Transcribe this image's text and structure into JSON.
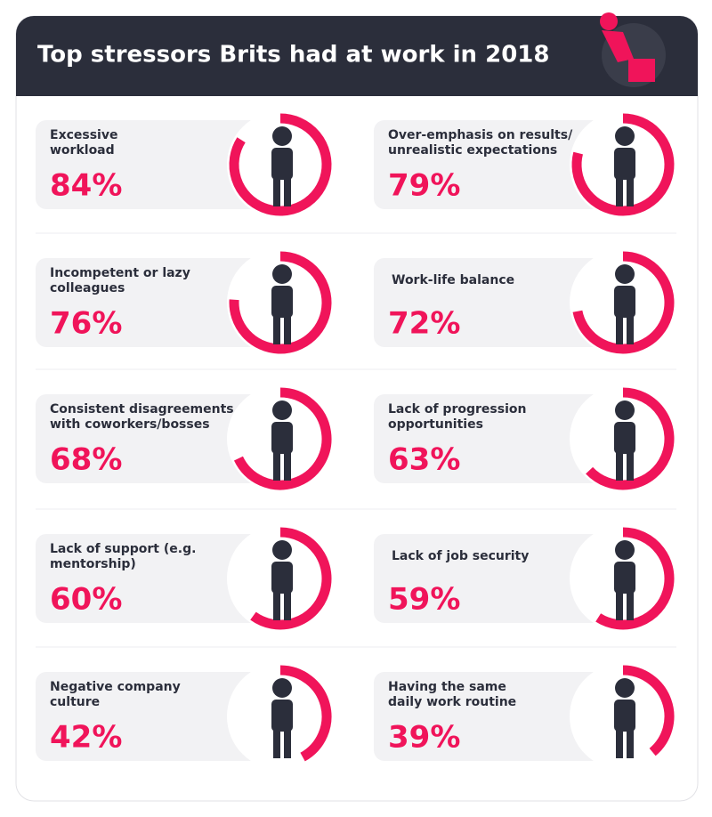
{
  "chart_data": {
    "type": "ring",
    "title": "Top stressors Brits had at work in 2018",
    "categories": [
      [
        "Excessive",
        "workload"
      ],
      [
        "Over-emphasis on results/",
        "unrealistic expectations"
      ],
      [
        "Incompetent or lazy",
        "colleagues"
      ],
      [
        "Work-life balance"
      ],
      [
        "Consistent disagreements",
        "with coworkers/bosses"
      ],
      [
        "Lack of progression",
        "opportunities"
      ],
      [
        "Lack of support (e.g.",
        "mentorship)"
      ],
      [
        "Lack of job security"
      ],
      [
        "Negative company",
        "culture"
      ],
      [
        "Having the same",
        "daily work routine"
      ]
    ],
    "values": [
      84,
      79,
      76,
      72,
      68,
      63,
      60,
      59,
      42,
      39
    ],
    "value_labels": [
      "84%",
      "79%",
      "76%",
      "72%",
      "68%",
      "63%",
      "60%",
      "59%",
      "42%",
      "39%"
    ],
    "color": "#f0145a"
  }
}
